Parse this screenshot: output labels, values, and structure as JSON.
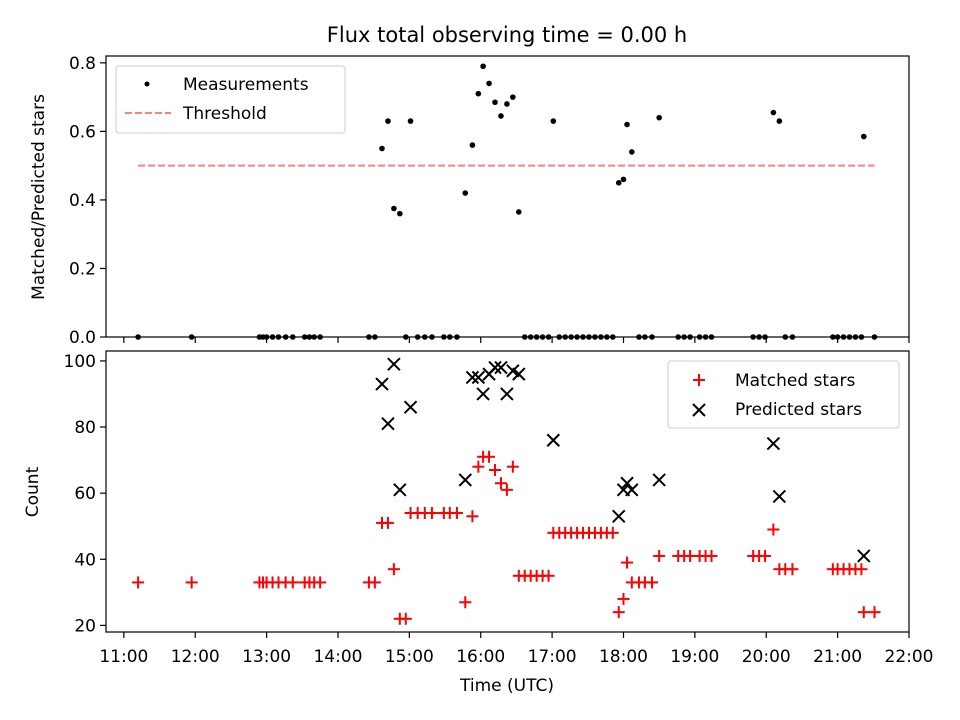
{
  "title": "Flux total observing time = 0.00 h",
  "chart_data": [
    {
      "type": "scatter",
      "panel": "top",
      "title": "Flux total observing time = 0.00 h",
      "xlabel": "",
      "ylabel": "Matched/Predicted stars",
      "xlim": [
        "10:45",
        "22:00"
      ],
      "ylim": [
        0,
        0.82
      ],
      "yticks": [
        0.0,
        0.2,
        0.4,
        0.6,
        0.8
      ],
      "ytick_labels": [
        "0.0",
        "0.2",
        "0.4",
        "0.6",
        "0.8"
      ],
      "legend": {
        "position": "top-left",
        "entries": [
          "Measurements",
          "Threshold"
        ]
      },
      "series": [
        {
          "name": "Measurements",
          "kind": "points",
          "color": "#000000",
          "points": [
            [
              "11:12",
              0.0
            ],
            [
              "11:57",
              0.0
            ],
            [
              "12:54",
              0.0
            ],
            [
              "12:57",
              0.0
            ],
            [
              "13:00",
              0.0
            ],
            [
              "13:05",
              0.0
            ],
            [
              "13:10",
              0.0
            ],
            [
              "13:16",
              0.0
            ],
            [
              "13:22",
              0.0
            ],
            [
              "13:32",
              0.0
            ],
            [
              "13:36",
              0.0
            ],
            [
              "13:40",
              0.0
            ],
            [
              "13:45",
              0.0
            ],
            [
              "14:26",
              0.0
            ],
            [
              "14:31",
              0.0
            ],
            [
              "14:37",
              0.55
            ],
            [
              "14:42",
              0.63
            ],
            [
              "14:47",
              0.375
            ],
            [
              "14:52",
              0.36
            ],
            [
              "14:57",
              0.0
            ],
            [
              "15:01",
              0.63
            ],
            [
              "15:07",
              0.0
            ],
            [
              "15:13",
              0.0
            ],
            [
              "15:19",
              0.0
            ],
            [
              "15:29",
              0.0
            ],
            [
              "15:34",
              0.0
            ],
            [
              "15:40",
              0.0
            ],
            [
              "15:47",
              0.42
            ],
            [
              "15:53",
              0.56
            ],
            [
              "15:58",
              0.71
            ],
            [
              "16:02",
              0.79
            ],
            [
              "16:07",
              0.74
            ],
            [
              "16:12",
              0.685
            ],
            [
              "16:17",
              0.645
            ],
            [
              "16:22",
              0.68
            ],
            [
              "16:27",
              0.7
            ],
            [
              "16:32",
              0.365
            ],
            [
              "16:37",
              0.0
            ],
            [
              "16:42",
              0.0
            ],
            [
              "16:47",
              0.0
            ],
            [
              "16:52",
              0.0
            ],
            [
              "16:57",
              0.0
            ],
            [
              "17:01",
              0.63
            ],
            [
              "17:06",
              0.0
            ],
            [
              "17:11",
              0.0
            ],
            [
              "17:16",
              0.0
            ],
            [
              "17:21",
              0.0
            ],
            [
              "17:26",
              0.0
            ],
            [
              "17:31",
              0.0
            ],
            [
              "17:36",
              0.0
            ],
            [
              "17:41",
              0.0
            ],
            [
              "17:46",
              0.0
            ],
            [
              "17:51",
              0.0
            ],
            [
              "17:56",
              0.45
            ],
            [
              "18:00",
              0.46
            ],
            [
              "18:03",
              0.62
            ],
            [
              "18:07",
              0.54
            ],
            [
              "18:13",
              0.0
            ],
            [
              "18:18",
              0.0
            ],
            [
              "18:24",
              0.0
            ],
            [
              "18:30",
              0.64
            ],
            [
              "18:46",
              0.0
            ],
            [
              "18:51",
              0.0
            ],
            [
              "18:56",
              0.0
            ],
            [
              "19:04",
              0.0
            ],
            [
              "19:09",
              0.0
            ],
            [
              "19:14",
              0.0
            ],
            [
              "19:49",
              0.0
            ],
            [
              "19:54",
              0.0
            ],
            [
              "19:59",
              0.0
            ],
            [
              "20:06",
              0.655
            ],
            [
              "20:11",
              0.63
            ],
            [
              "20:16",
              0.0
            ],
            [
              "20:22",
              0.0
            ],
            [
              "20:56",
              0.0
            ],
            [
              "21:00",
              0.0
            ],
            [
              "21:05",
              0.0
            ],
            [
              "21:10",
              0.0
            ],
            [
              "21:15",
              0.0
            ],
            [
              "21:20",
              0.0
            ],
            [
              "21:22",
              0.585
            ],
            [
              "21:31",
              0.0
            ]
          ]
        },
        {
          "name": "Threshold",
          "kind": "dashed-line",
          "color": "#ff7f7f",
          "points": [
            [
              "11:12",
              0.5
            ],
            [
              "21:31",
              0.5
            ]
          ]
        }
      ]
    },
    {
      "type": "scatter",
      "panel": "bottom",
      "title": "",
      "xlabel": "Time (UTC)",
      "ylabel": "Count",
      "xlim": [
        "10:45",
        "22:00"
      ],
      "ylim": [
        18,
        103
      ],
      "yticks": [
        20,
        40,
        60,
        80,
        100
      ],
      "ytick_labels": [
        "20",
        "40",
        "60",
        "80",
        "100"
      ],
      "xticks": [
        "11:00",
        "12:00",
        "13:00",
        "14:00",
        "15:00",
        "16:00",
        "17:00",
        "18:00",
        "19:00",
        "20:00",
        "21:00",
        "22:00"
      ],
      "legend": {
        "position": "top-right",
        "entries": [
          "Matched stars",
          "Predicted stars"
        ]
      },
      "series": [
        {
          "name": "Matched stars",
          "marker": "plus",
          "color": "#ff0000",
          "points": [
            [
              "11:12",
              33
            ],
            [
              "11:57",
              33
            ],
            [
              "12:54",
              33
            ],
            [
              "12:57",
              33
            ],
            [
              "13:00",
              33
            ],
            [
              "13:05",
              33
            ],
            [
              "13:10",
              33
            ],
            [
              "13:16",
              33
            ],
            [
              "13:22",
              33
            ],
            [
              "13:32",
              33
            ],
            [
              "13:36",
              33
            ],
            [
              "13:40",
              33
            ],
            [
              "13:45",
              33
            ],
            [
              "14:26",
              33
            ],
            [
              "14:31",
              33
            ],
            [
              "14:37",
              51
            ],
            [
              "14:42",
              51
            ],
            [
              "14:47",
              37
            ],
            [
              "14:52",
              22
            ],
            [
              "14:57",
              22
            ],
            [
              "15:01",
              54
            ],
            [
              "15:07",
              54
            ],
            [
              "15:13",
              54
            ],
            [
              "15:19",
              54
            ],
            [
              "15:29",
              54
            ],
            [
              "15:34",
              54
            ],
            [
              "15:40",
              54
            ],
            [
              "15:47",
              27
            ],
            [
              "15:53",
              53
            ],
            [
              "15:58",
              68
            ],
            [
              "16:02",
              71
            ],
            [
              "16:07",
              71
            ],
            [
              "16:12",
              67
            ],
            [
              "16:17",
              63
            ],
            [
              "16:22",
              61
            ],
            [
              "16:27",
              68
            ],
            [
              "16:32",
              35
            ],
            [
              "16:37",
              35
            ],
            [
              "16:42",
              35
            ],
            [
              "16:47",
              35
            ],
            [
              "16:52",
              35
            ],
            [
              "16:57",
              35
            ],
            [
              "17:01",
              48
            ],
            [
              "17:06",
              48
            ],
            [
              "17:11",
              48
            ],
            [
              "17:16",
              48
            ],
            [
              "17:21",
              48
            ],
            [
              "17:26",
              48
            ],
            [
              "17:31",
              48
            ],
            [
              "17:36",
              48
            ],
            [
              "17:41",
              48
            ],
            [
              "17:46",
              48
            ],
            [
              "17:51",
              48
            ],
            [
              "17:56",
              24
            ],
            [
              "18:00",
              28
            ],
            [
              "18:03",
              39
            ],
            [
              "18:07",
              33
            ],
            [
              "18:13",
              33
            ],
            [
              "18:18",
              33
            ],
            [
              "18:24",
              33
            ],
            [
              "18:30",
              41
            ],
            [
              "18:46",
              41
            ],
            [
              "18:51",
              41
            ],
            [
              "18:56",
              41
            ],
            [
              "19:04",
              41
            ],
            [
              "19:09",
              41
            ],
            [
              "19:14",
              41
            ],
            [
              "19:49",
              41
            ],
            [
              "19:54",
              41
            ],
            [
              "19:59",
              41
            ],
            [
              "20:06",
              49
            ],
            [
              "20:11",
              37
            ],
            [
              "20:16",
              37
            ],
            [
              "20:22",
              37
            ],
            [
              "20:56",
              37
            ],
            [
              "21:00",
              37
            ],
            [
              "21:05",
              37
            ],
            [
              "21:10",
              37
            ],
            [
              "21:15",
              37
            ],
            [
              "21:20",
              37
            ],
            [
              "21:22",
              24
            ],
            [
              "21:31",
              24
            ]
          ]
        },
        {
          "name": "Predicted stars",
          "marker": "x",
          "color": "#000000",
          "points": [
            [
              "14:37",
              93
            ],
            [
              "14:42",
              81
            ],
            [
              "14:47",
              99
            ],
            [
              "14:52",
              61
            ],
            [
              "15:01",
              86
            ],
            [
              "15:47",
              64
            ],
            [
              "15:53",
              95
            ],
            [
              "15:58",
              95
            ],
            [
              "16:02",
              90
            ],
            [
              "16:07",
              96
            ],
            [
              "16:12",
              98
            ],
            [
              "16:17",
              98
            ],
            [
              "16:22",
              90
            ],
            [
              "16:27",
              97
            ],
            [
              "16:32",
              96
            ],
            [
              "17:01",
              76
            ],
            [
              "17:56",
              53
            ],
            [
              "18:00",
              61
            ],
            [
              "18:03",
              63
            ],
            [
              "18:07",
              61
            ],
            [
              "18:30",
              64
            ],
            [
              "20:06",
              75
            ],
            [
              "20:11",
              59
            ],
            [
              "21:22",
              41
            ]
          ]
        }
      ]
    }
  ]
}
